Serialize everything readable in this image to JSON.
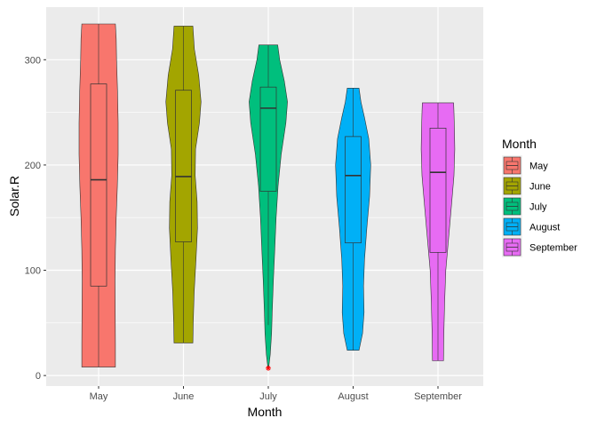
{
  "chart_data": {
    "type": "violin",
    "xlabel": "Month",
    "ylabel": "Solar.R",
    "ylim": [
      -10,
      350
    ],
    "y_ticks": [
      0,
      100,
      200,
      300
    ],
    "grid": true,
    "legend": {
      "title": "Month",
      "position": "right"
    },
    "categories": [
      "May",
      "June",
      "July",
      "August",
      "September"
    ],
    "series": [
      {
        "name": "May",
        "color": "#F8766D",
        "min": 8,
        "q1": 85,
        "median": 186,
        "q3": 277,
        "max": 334,
        "density": [
          [
            8,
            0.86
          ],
          [
            30,
            0.86
          ],
          [
            60,
            0.85
          ],
          [
            90,
            0.84
          ],
          [
            120,
            0.86
          ],
          [
            150,
            0.9
          ],
          [
            180,
            0.96
          ],
          [
            210,
            1.0
          ],
          [
            240,
            1.0
          ],
          [
            270,
            0.97
          ],
          [
            300,
            0.92
          ],
          [
            320,
            0.9
          ],
          [
            334,
            0.86
          ]
        ],
        "outliers": []
      },
      {
        "name": "June",
        "color": "#A3A500",
        "min": 31,
        "q1": 127,
        "median": 189,
        "q3": 271,
        "max": 332,
        "density": [
          [
            31,
            0.48
          ],
          [
            50,
            0.5
          ],
          [
            80,
            0.55
          ],
          [
            110,
            0.64
          ],
          [
            140,
            0.72
          ],
          [
            165,
            0.7
          ],
          [
            190,
            0.6
          ],
          [
            215,
            0.62
          ],
          [
            240,
            0.82
          ],
          [
            260,
            0.9
          ],
          [
            285,
            0.78
          ],
          [
            310,
            0.56
          ],
          [
            332,
            0.48
          ]
        ],
        "outliers": []
      },
      {
        "name": "July",
        "color": "#00BF7D",
        "min": 48,
        "q1": 175,
        "median": 254,
        "q3": 274,
        "max": 314,
        "density": [
          [
            7,
            0.02
          ],
          [
            20,
            0.1
          ],
          [
            40,
            0.17
          ],
          [
            60,
            0.2
          ],
          [
            90,
            0.26
          ],
          [
            120,
            0.33
          ],
          [
            150,
            0.4
          ],
          [
            180,
            0.5
          ],
          [
            210,
            0.66
          ],
          [
            240,
            0.9
          ],
          [
            260,
            0.98
          ],
          [
            280,
            0.82
          ],
          [
            300,
            0.58
          ],
          [
            314,
            0.48
          ]
        ],
        "outliers": [
          7
        ]
      },
      {
        "name": "August",
        "color": "#00B0F6",
        "min": 24,
        "q1": 126,
        "median": 190,
        "q3": 227,
        "max": 273,
        "density": [
          [
            24,
            0.3
          ],
          [
            40,
            0.48
          ],
          [
            60,
            0.56
          ],
          [
            85,
            0.53
          ],
          [
            110,
            0.58
          ],
          [
            140,
            0.7
          ],
          [
            170,
            0.84
          ],
          [
            200,
            0.9
          ],
          [
            225,
            0.8
          ],
          [
            245,
            0.58
          ],
          [
            260,
            0.4
          ],
          [
            273,
            0.3
          ]
        ],
        "outliers": []
      },
      {
        "name": "September",
        "color": "#E76BF3",
        "min": 14,
        "q1": 117,
        "median": 193,
        "q3": 235,
        "max": 259,
        "density": [
          [
            14,
            0.28
          ],
          [
            40,
            0.3
          ],
          [
            70,
            0.34
          ],
          [
            100,
            0.4
          ],
          [
            130,
            0.54
          ],
          [
            160,
            0.68
          ],
          [
            190,
            0.82
          ],
          [
            215,
            0.86
          ],
          [
            235,
            0.84
          ],
          [
            250,
            0.82
          ],
          [
            259,
            0.8
          ]
        ],
        "outliers": []
      }
    ]
  }
}
